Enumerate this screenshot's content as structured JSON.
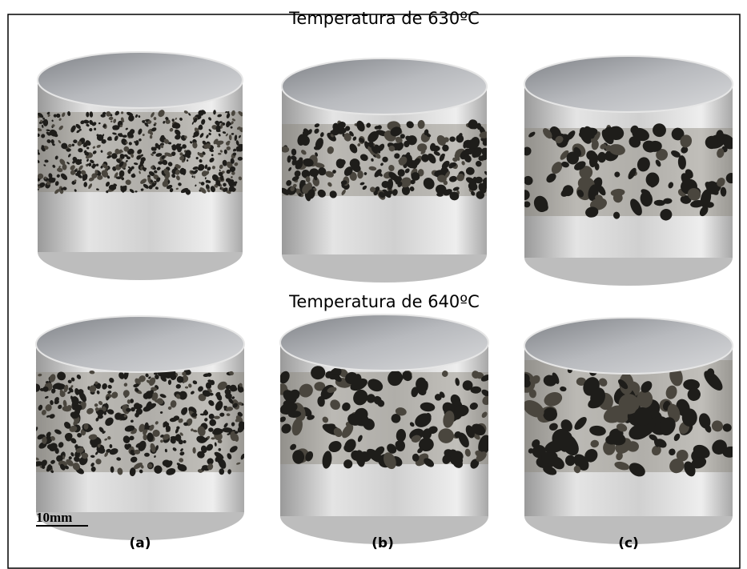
{
  "figure": {
    "rows": [
      {
        "title": "Temperatura de 630ºC"
      },
      {
        "title": "Temperatura de 640ºC"
      }
    ],
    "scale_bar": "10mm",
    "panel_labels": [
      "(a)",
      "(b)",
      "(c)"
    ]
  }
}
